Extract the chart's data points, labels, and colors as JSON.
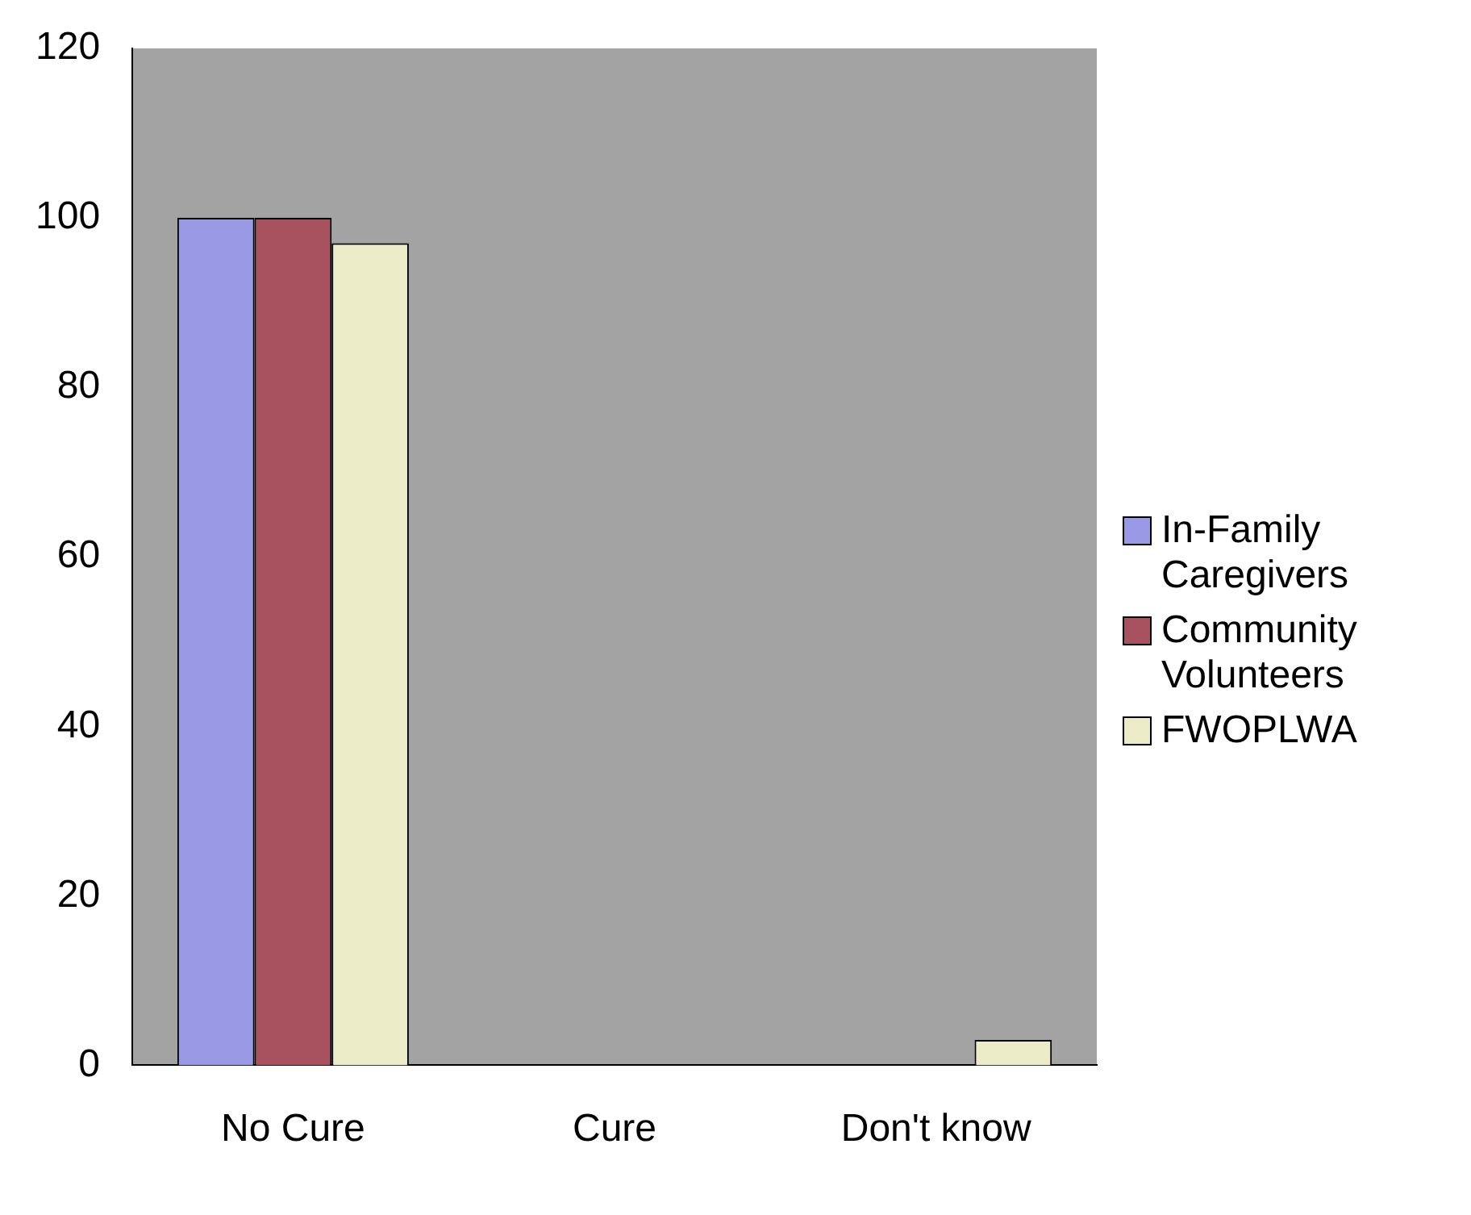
{
  "chart_data": {
    "type": "bar",
    "categories": [
      "No Cure",
      "Cure",
      "Don't know"
    ],
    "series": [
      {
        "name": "In-Family Caregivers",
        "color": "#9999e6",
        "values": [
          100,
          0,
          0
        ]
      },
      {
        "name": "Community Volunteers",
        "color": "#a8515f",
        "values": [
          100,
          0,
          0
        ]
      },
      {
        "name": "FWOPLWA",
        "color": "#ecebc8",
        "values": [
          97,
          0,
          3
        ]
      }
    ],
    "ylim": [
      0,
      120
    ],
    "yticks": [
      0,
      20,
      40,
      60,
      80,
      100,
      120
    ],
    "grid": false,
    "legend": "right"
  }
}
